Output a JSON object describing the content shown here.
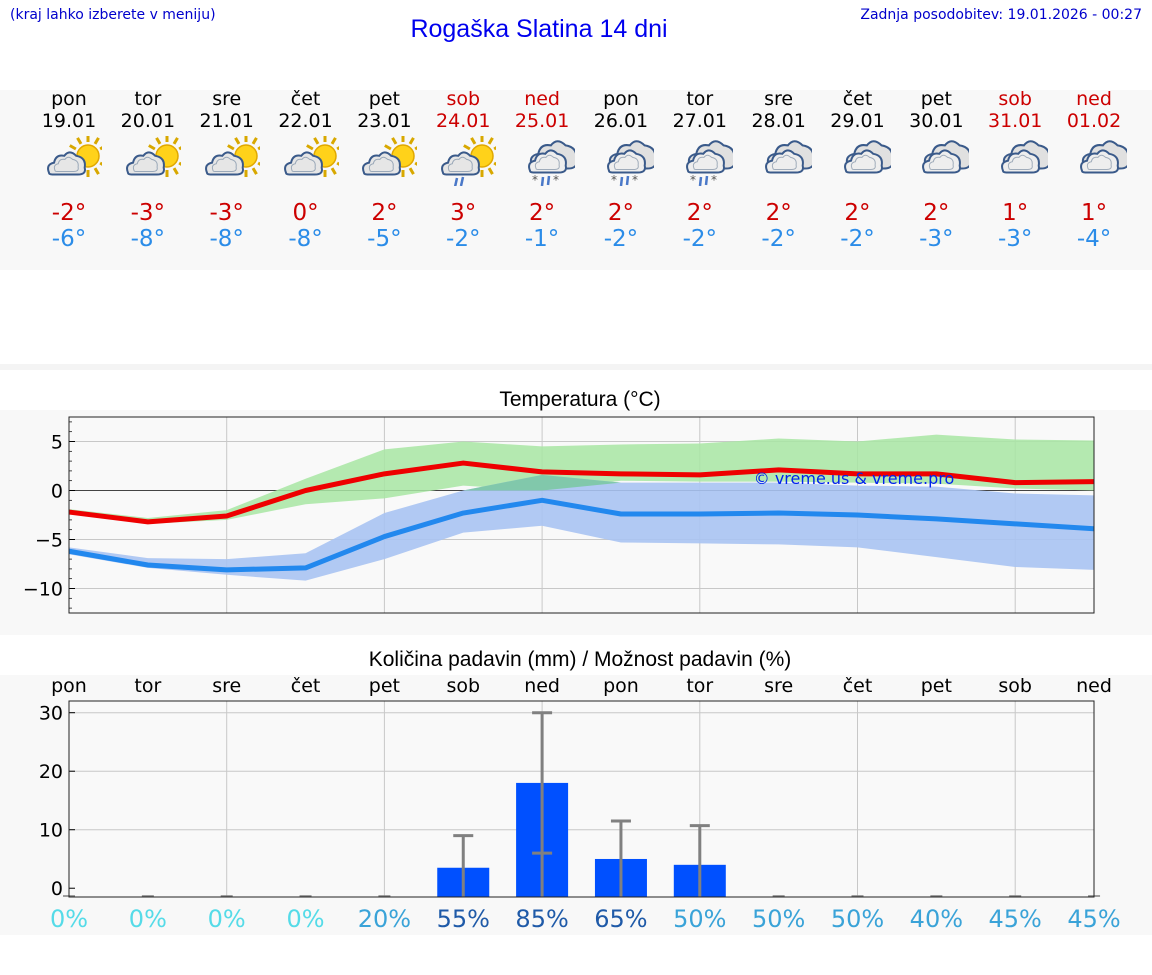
{
  "header": {
    "hint": "(kraj lahko izberete v meniju)",
    "title": "Rogaška Slatina 14 dni",
    "updated": "Zadnja posodobitev: 19.01.2026 - 00:27"
  },
  "colors": {
    "text_blue": "#0000cc",
    "max_temp": "#cc0000",
    "min_temp": "#2b8ce8",
    "max_line": "#ee0000",
    "min_line": "#2288ee",
    "max_band": "#a8e6a3",
    "min_band": "#a9c3f2",
    "overlap_band": "#7ec8a8",
    "bar": "#0050ff",
    "errbar": "#808080"
  },
  "forecast": [
    {
      "dow": "pon",
      "date": "19.01",
      "weekend": false,
      "icon": "sun-cloud-icon",
      "max": "-2°",
      "min": "-6°"
    },
    {
      "dow": "tor",
      "date": "20.01",
      "weekend": false,
      "icon": "sun-cloud-icon",
      "max": "-3°",
      "min": "-8°"
    },
    {
      "dow": "sre",
      "date": "21.01",
      "weekend": false,
      "icon": "sun-cloud-icon",
      "max": "-3°",
      "min": "-8°"
    },
    {
      "dow": "čet",
      "date": "22.01",
      "weekend": false,
      "icon": "sun-cloud-icon",
      "max": "0°",
      "min": "-8°"
    },
    {
      "dow": "pet",
      "date": "23.01",
      "weekend": false,
      "icon": "sun-cloud-icon",
      "max": "2°",
      "min": "-5°"
    },
    {
      "dow": "sob",
      "date": "24.01",
      "weekend": true,
      "icon": "sun-cloud-rain-icon",
      "max": "3°",
      "min": "-2°"
    },
    {
      "dow": "ned",
      "date": "25.01",
      "weekend": true,
      "icon": "cloud-sleet-icon",
      "max": "2°",
      "min": "-1°"
    },
    {
      "dow": "pon",
      "date": "26.01",
      "weekend": false,
      "icon": "cloud-sleet-icon",
      "max": "2°",
      "min": "-2°"
    },
    {
      "dow": "tor",
      "date": "27.01",
      "weekend": false,
      "icon": "cloud-sleet-icon",
      "max": "2°",
      "min": "-2°"
    },
    {
      "dow": "sre",
      "date": "28.01",
      "weekend": false,
      "icon": "cloud-icon",
      "max": "2°",
      "min": "-2°"
    },
    {
      "dow": "čet",
      "date": "29.01",
      "weekend": false,
      "icon": "cloud-icon",
      "max": "2°",
      "min": "-2°"
    },
    {
      "dow": "pet",
      "date": "30.01",
      "weekend": false,
      "icon": "cloud-icon",
      "max": "2°",
      "min": "-3°"
    },
    {
      "dow": "sob",
      "date": "31.01",
      "weekend": true,
      "icon": "cloud-icon",
      "max": "1°",
      "min": "-3°"
    },
    {
      "dow": "ned",
      "date": "01.02",
      "weekend": true,
      "icon": "cloud-icon",
      "max": "1°",
      "min": "-4°"
    }
  ],
  "chart_data": [
    {
      "type": "line",
      "title": "Temperatura (°C)",
      "xlabel": "",
      "ylabel": "",
      "ylim": [
        -12.5,
        7.5
      ],
      "yticks": [
        5,
        0,
        -5,
        -10
      ],
      "ytick_labels": [
        "5",
        "0",
        "−5",
        "−10"
      ],
      "x": [
        0,
        1,
        2,
        3,
        4,
        5,
        6,
        7,
        8,
        9,
        10,
        11,
        12,
        13
      ],
      "series": [
        {
          "name": "max",
          "values": [
            -2.2,
            -3.2,
            -2.6,
            0.0,
            1.7,
            2.8,
            1.9,
            1.7,
            1.6,
            2.1,
            1.7,
            1.7,
            0.8,
            0.9
          ],
          "band_low": [
            -2.4,
            -3.4,
            -3.0,
            -1.4,
            -0.8,
            0.5,
            0.0,
            1.0,
            0.9,
            0.9,
            0.8,
            0.7,
            0.2,
            0.0
          ],
          "band_high": [
            -1.9,
            -2.8,
            -2.0,
            1.2,
            4.2,
            5.0,
            4.5,
            4.7,
            4.8,
            5.3,
            5.0,
            5.7,
            5.2,
            5.1
          ]
        },
        {
          "name": "min",
          "values": [
            -6.2,
            -7.6,
            -8.1,
            -7.9,
            -4.7,
            -2.3,
            -1.0,
            -2.4,
            -2.4,
            -2.3,
            -2.5,
            -2.9,
            -3.4,
            -3.9
          ],
          "band_low": [
            -6.5,
            -7.9,
            -8.6,
            -9.2,
            -7.0,
            -4.3,
            -3.6,
            -5.3,
            -5.4,
            -5.5,
            -5.8,
            -6.8,
            -7.8,
            -8.1
          ],
          "band_high": [
            -5.8,
            -6.9,
            -7.0,
            -6.4,
            -2.3,
            0.0,
            1.6,
            0.8,
            0.8,
            0.8,
            0.5,
            0.4,
            -0.3,
            -0.5
          ]
        }
      ],
      "watermark": "© vreme.us & vreme.pro"
    },
    {
      "type": "bar",
      "title": "Količina padavin (mm) / Možnost padavin (%)",
      "categories": [
        "pon",
        "tor",
        "sre",
        "čet",
        "pet",
        "sob",
        "ned",
        "pon",
        "tor",
        "sre",
        "čet",
        "pet",
        "sob",
        "ned"
      ],
      "values": [
        0,
        0,
        0,
        0,
        0,
        3.5,
        18,
        5,
        4,
        0,
        0,
        0,
        0,
        0
      ],
      "err_low": [
        0,
        0,
        0,
        0,
        0,
        0,
        6,
        0,
        0,
        0,
        0,
        0,
        0,
        0
      ],
      "err_high": [
        0,
        0,
        0,
        0,
        0,
        9,
        30,
        11.5,
        10.7,
        0,
        0,
        0,
        0,
        0
      ],
      "probability": [
        "0%",
        "0%",
        "0%",
        "0%",
        "20%",
        "55%",
        "85%",
        "65%",
        "50%",
        "50%",
        "50%",
        "40%",
        "45%",
        "45%"
      ],
      "probability_colors": [
        "#55dbe8",
        "#55dbe8",
        "#55dbe8",
        "#55dbe8",
        "#3aa3d8",
        "#1f5aa8",
        "#1f5aa8",
        "#1f5aa8",
        "#3aa3d8",
        "#3aa3d8",
        "#3aa3d8",
        "#3aa3d8",
        "#3aa3d8",
        "#3aa3d8"
      ],
      "ylim": [
        -1.5,
        32
      ],
      "yticks": [
        0,
        10,
        20,
        30
      ],
      "ytick_labels": [
        "0",
        "10",
        "20",
        "30"
      ]
    }
  ]
}
